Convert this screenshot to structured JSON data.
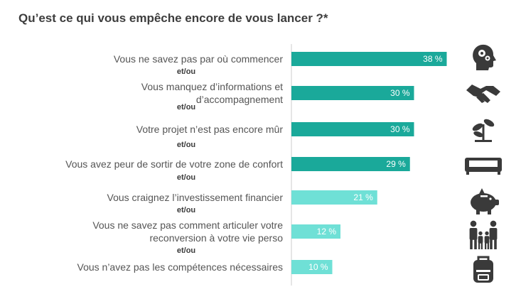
{
  "title": "Qu’est ce qui vous empêche encore de vous lancer ?*",
  "chart_data": {
    "type": "bar",
    "orientation": "horizontal",
    "title": "Qu’est ce qui vous empêche encore de vous lancer ?*",
    "unit": "%",
    "separator_label": "et/ou",
    "xlim": [
      0,
      40
    ],
    "categories": [
      [
        "Vous ne savez pas par où commencer"
      ],
      [
        "Vous manquez d’informations et",
        "d’accompagnement"
      ],
      [
        "Votre projet n’est pas encore mûr"
      ],
      [
        "Vous avez peur de sortir de votre zone de confort"
      ],
      [
        "Vous craignez l’investissement financier"
      ],
      [
        "Vous ne savez pas comment articuler votre",
        "reconversion à votre vie perso"
      ],
      [
        "Vous n’avez pas les compétences nécessaires"
      ]
    ],
    "values": [
      38,
      30,
      30,
      29,
      21,
      12,
      10
    ],
    "value_labels": [
      "38 %",
      "30 %",
      "30 %",
      "29 %",
      "21 %",
      "12 %",
      "10 %"
    ],
    "bar_colors": [
      "#1aa99a",
      "#1aa99a",
      "#1aa99a",
      "#1aa99a",
      "#6fe0d6",
      "#6fe0d6",
      "#6fe0d6"
    ],
    "icons": [
      "head-gears-icon",
      "handshake-icon",
      "sprout-icon",
      "sofa-icon",
      "piggy-bank-icon",
      "family-icon",
      "backpack-icon"
    ]
  },
  "colors": {
    "axis": "#cccccc",
    "text": "#555555",
    "title": "#3d3d3d",
    "icon": "#3a3a3a"
  }
}
